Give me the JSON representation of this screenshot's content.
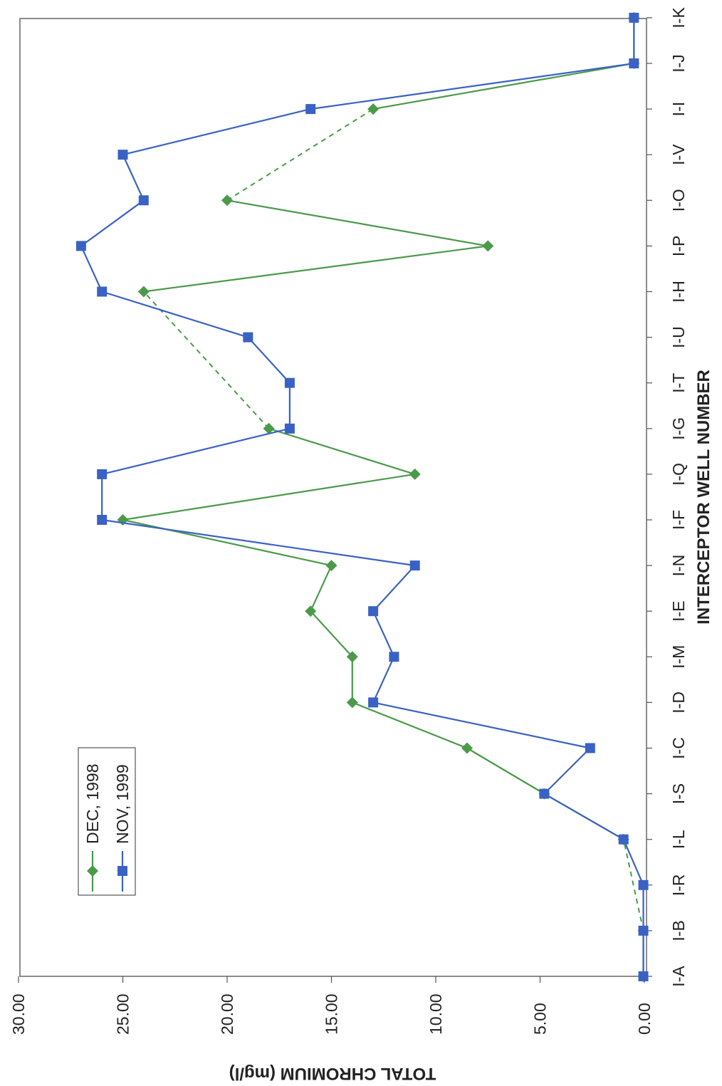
{
  "chart_data": {
    "type": "line",
    "categories": [
      "I-A",
      "I-B",
      "I-R",
      "I-L",
      "I-S",
      "I-C",
      "I-D",
      "I-M",
      "I-E",
      "I-N",
      "I-F",
      "I-Q",
      "I-G",
      "I-T",
      "I-U",
      "I-H",
      "I-P",
      "I-O",
      "I-V",
      "I-I",
      "I-J",
      "I-K"
    ],
    "xlabel": "INTERCEPTOR WELL NUMBER",
    "ylabel": "TOTAL CHROMIUM (mg/l)",
    "ylim": [
      0,
      30
    ],
    "yticks": [
      "0.00",
      "5.00",
      "10.00",
      "15.00",
      "20.00",
      "25.00",
      "30.00"
    ],
    "orientation": "rotated 90 degrees clockwise (y axis along bottom, categories along right edge)",
    "grid": false,
    "legend_position": "upper-left of plot area",
    "series": [
      {
        "name": "DEC, 1998",
        "color": "#4a9a4a",
        "marker": "diamond",
        "values": [
          0.05,
          0.05,
          null,
          1.0,
          4.8,
          8.5,
          14.0,
          14.0,
          16.0,
          15.0,
          25.0,
          11.0,
          18.0,
          null,
          null,
          24.0,
          7.5,
          20.0,
          null,
          13.0,
          0.5,
          0.5
        ],
        "dashed_segments": [
          [
            1,
            3
          ],
          [
            4,
            5
          ],
          [
            12,
            15
          ],
          [
            17,
            19
          ]
        ]
      },
      {
        "name": "NOV, 1999",
        "color": "#3a62c4",
        "marker": "square",
        "values": [
          0.05,
          0.05,
          0.05,
          1.0,
          4.8,
          2.6,
          13.0,
          12.0,
          13.0,
          11.0,
          26.0,
          26.0,
          17.0,
          17.0,
          19.0,
          26.0,
          27.0,
          24.0,
          25.0,
          16.0,
          0.5,
          0.5
        ]
      }
    ]
  }
}
